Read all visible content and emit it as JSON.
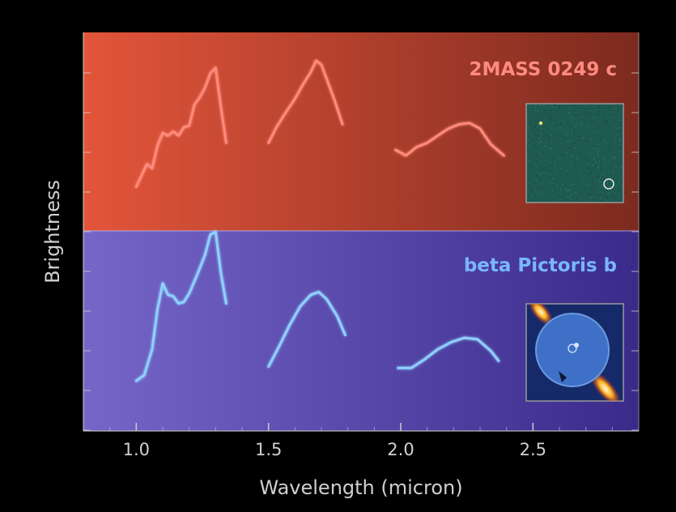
{
  "chart_data": {
    "type": "line",
    "xlabel": "Wavelength (micron)",
    "ylabel": "Brightness",
    "xlim": [
      0.8,
      2.9
    ],
    "x_ticks": [
      "1.0",
      "1.5",
      "2.0",
      "2.5"
    ],
    "y_ticks_labeled": false,
    "grid": false,
    "panels": [
      {
        "title": "2MASS 0249 c",
        "background": [
          "#e3553a",
          "#7c2a1f"
        ],
        "line_color": "#ff8a7a",
        "inset": "starfield-image",
        "segments": [
          {
            "x": [
              1.0,
              1.02,
              1.04,
              1.06,
              1.08,
              1.1,
              1.12,
              1.14,
              1.16,
              1.18,
              1.2,
              1.22,
              1.24,
              1.26,
              1.28,
              1.3,
              1.32,
              1.34
            ],
            "y": [
              0.14,
              0.22,
              0.3,
              0.27,
              0.43,
              0.52,
              0.5,
              0.53,
              0.5,
              0.56,
              0.57,
              0.72,
              0.77,
              0.84,
              0.94,
              0.98,
              0.7,
              0.45
            ]
          },
          {
            "x": [
              1.5,
              1.53,
              1.56,
              1.6,
              1.63,
              1.66,
              1.68,
              1.7,
              1.72,
              1.75,
              1.78
            ],
            "y": [
              0.45,
              0.56,
              0.65,
              0.76,
              0.86,
              0.95,
              1.03,
              1.0,
              0.9,
              0.75,
              0.58
            ]
          },
          {
            "x": [
              1.98,
              2.02,
              2.06,
              2.1,
              2.14,
              2.18,
              2.22,
              2.26,
              2.3,
              2.34,
              2.39
            ],
            "y": [
              0.4,
              0.36,
              0.42,
              0.45,
              0.5,
              0.55,
              0.58,
              0.59,
              0.55,
              0.44,
              0.36
            ]
          }
        ]
      },
      {
        "title": "beta Pictoris b",
        "background": [
          "#7566c8",
          "#3a2a8a"
        ],
        "line_color": "#8fd0ff",
        "inset": "disk-image",
        "segments": [
          {
            "x": [
              1.0,
              1.03,
              1.06,
              1.08,
              1.1,
              1.12,
              1.14,
              1.16,
              1.18,
              1.2,
              1.23,
              1.26,
              1.28,
              1.3,
              1.32,
              1.34
            ],
            "y": [
              0.18,
              0.22,
              0.4,
              0.68,
              0.86,
              0.78,
              0.77,
              0.72,
              0.73,
              0.79,
              0.92,
              1.06,
              1.2,
              1.22,
              0.93,
              0.72
            ]
          },
          {
            "x": [
              1.5,
              1.54,
              1.58,
              1.62,
              1.66,
              1.69,
              1.72,
              1.76,
              1.79
            ],
            "y": [
              0.28,
              0.42,
              0.57,
              0.7,
              0.78,
              0.8,
              0.75,
              0.63,
              0.5
            ]
          },
          {
            "x": [
              1.99,
              2.04,
              2.09,
              2.14,
              2.19,
              2.24,
              2.29,
              2.34,
              2.37
            ],
            "y": [
              0.27,
              0.27,
              0.33,
              0.4,
              0.45,
              0.48,
              0.47,
              0.39,
              0.32
            ]
          }
        ]
      }
    ]
  }
}
